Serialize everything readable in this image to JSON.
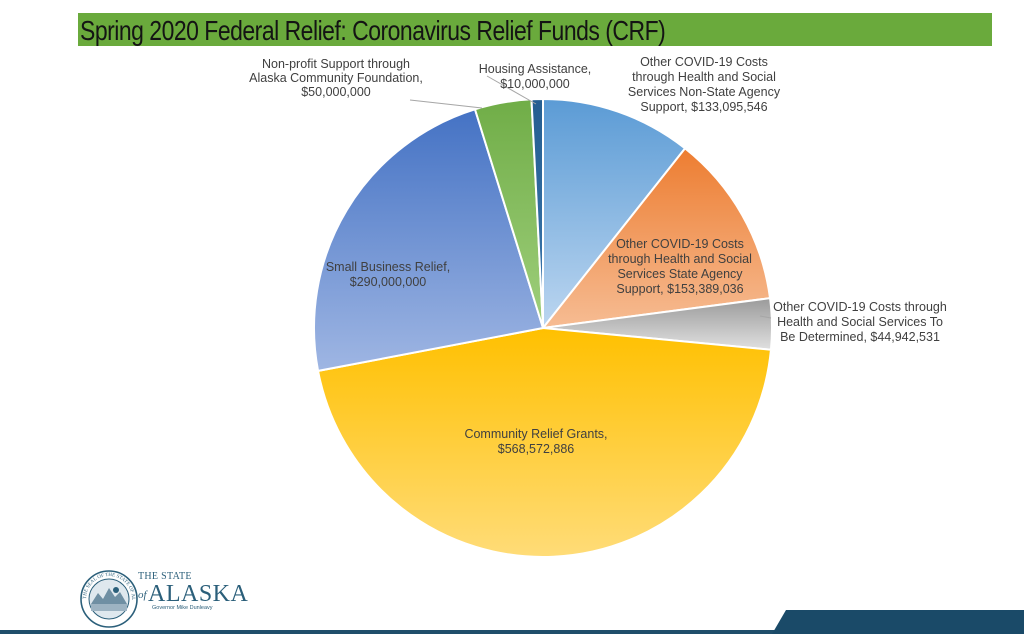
{
  "chart_data": {
    "type": "pie",
    "title": "Spring 2020 Federal Relief: Coronavirus Relief Funds (CRF)",
    "slices": [
      {
        "label_lines": [
          "Other COVID-19 Costs",
          "through Health and Social",
          "Services Non-State Agency",
          "Support,  $133,095,546"
        ],
        "value": 133095546,
        "color_top": "#5b9bd5",
        "color_bottom": "#bcd6f0"
      },
      {
        "label_lines": [
          "Other COVID-19 Costs",
          "through Health and Social",
          "Services State Agency",
          "Support,  $153,389,036"
        ],
        "value": 153389036,
        "color_top": "#ed7d31",
        "color_bottom": "#f6bc93"
      },
      {
        "label_lines": [
          "Other COVID-19 Costs through",
          "Health and Social Services To",
          "Be Determined,  $44,942,531"
        ],
        "value": 44942531,
        "color_top": "#9a9a9a",
        "color_bottom": "#e0e0e0"
      },
      {
        "label_lines": [
          "Community Relief Grants,",
          "$568,572,886"
        ],
        "value": 568572886,
        "color_top": "#ffc000",
        "color_bottom": "#ffdc78"
      },
      {
        "label_lines": [
          "Small Business Relief,",
          "$290,000,000"
        ],
        "value": 290000000,
        "color_top": "#4472c4",
        "color_bottom": "#9fb6e3"
      },
      {
        "label_lines": [
          "Non-profit Support through",
          "Alaska Community Foundation,",
          "$50,000,000"
        ],
        "value": 50000000,
        "color_top": "#70ad47",
        "color_bottom": "#9fcf7c"
      },
      {
        "label_lines": [
          "Housing Assistance,",
          "$10,000,000"
        ],
        "value": 10000000,
        "color_top": "#255e91",
        "color_bottom": "#3b77ad"
      }
    ]
  },
  "logo": {
    "state_line": "THE STATE",
    "of_line": "of",
    "name": "ALASKA",
    "governor": "Governor Mike Dunleavy",
    "seal_text": "THE SEAL OF THE STATE OF ALASKA"
  }
}
